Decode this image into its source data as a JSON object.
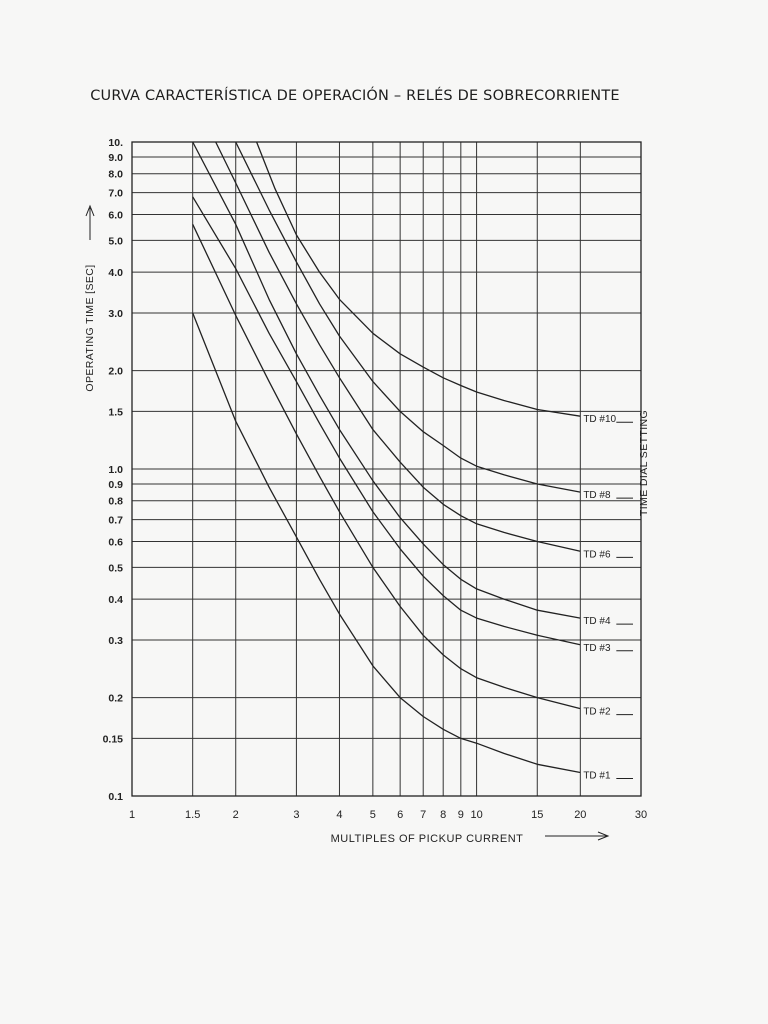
{
  "page_title": "CURVA CARACTERÍSTICA DE OPERACIÓN – RELÉS DE SOBRECORRIENTE",
  "chart_data": {
    "type": "line",
    "title": "CURVA CARACTERÍSTICA DE OPERACIÓN – RELÉS DE SOBRECORRIENTE",
    "xlabel": "MULTIPLES OF PICKUP CURRENT",
    "ylabel": "OPERATING TIME [SEC]",
    "right_label": "TIME DIAL SETTING",
    "x_scale": "log",
    "y_scale": "log",
    "xlim": [
      1,
      30
    ],
    "ylim": [
      0.1,
      10
    ],
    "grid": true,
    "x_ticks": [
      {
        "v": 1,
        "label": "1"
      },
      {
        "v": 1.5,
        "label": "1.5"
      },
      {
        "v": 2,
        "label": "2"
      },
      {
        "v": 3,
        "label": "3"
      },
      {
        "v": 4,
        "label": "4"
      },
      {
        "v": 5,
        "label": "5"
      },
      {
        "v": 6,
        "label": "6"
      },
      {
        "v": 7,
        "label": "7"
      },
      {
        "v": 8,
        "label": "8"
      },
      {
        "v": 9,
        "label": "9"
      },
      {
        "v": 10,
        "label": "10"
      },
      {
        "v": 15,
        "label": "15"
      },
      {
        "v": 20,
        "label": "20"
      },
      {
        "v": 30,
        "label": "30"
      }
    ],
    "y_ticks": [
      {
        "v": 10,
        "label": "10."
      },
      {
        "v": 9,
        "label": "9.0"
      },
      {
        "v": 8,
        "label": "8.0"
      },
      {
        "v": 7,
        "label": "7.0"
      },
      {
        "v": 6,
        "label": "6.0"
      },
      {
        "v": 5,
        "label": "5.0"
      },
      {
        "v": 4,
        "label": "4.0"
      },
      {
        "v": 3,
        "label": "3.0"
      },
      {
        "v": 2,
        "label": "2.0"
      },
      {
        "v": 1.5,
        "label": "1.5"
      },
      {
        "v": 1,
        "label": "1.0"
      },
      {
        "v": 0.9,
        "label": "0.9"
      },
      {
        "v": 0.8,
        "label": "0.8"
      },
      {
        "v": 0.7,
        "label": "0.7"
      },
      {
        "v": 0.6,
        "label": "0.6"
      },
      {
        "v": 0.5,
        "label": "0.5"
      },
      {
        "v": 0.4,
        "label": "0.4"
      },
      {
        "v": 0.3,
        "label": "0.3"
      },
      {
        "v": 0.2,
        "label": "0.2"
      },
      {
        "v": 0.15,
        "label": "0.15"
      },
      {
        "v": 0.1,
        "label": "0.1"
      }
    ],
    "series": [
      {
        "name": "TD #10",
        "x": [
          2.3,
          2.6,
          3.0,
          3.5,
          4.0,
          5.0,
          6.0,
          7.0,
          8.0,
          9.0,
          10.0,
          12.0,
          15.0,
          20.0
        ],
        "y": [
          10,
          7.2,
          5.2,
          4.0,
          3.3,
          2.6,
          2.25,
          2.05,
          1.9,
          1.8,
          1.72,
          1.62,
          1.52,
          1.45
        ]
      },
      {
        "name": "TD #8",
        "x": [
          2.0,
          2.5,
          3.0,
          3.5,
          4.0,
          5.0,
          6.0,
          7.0,
          8.0,
          9.0,
          10.0,
          12.0,
          15.0,
          20.0
        ],
        "y": [
          10,
          6.2,
          4.3,
          3.2,
          2.55,
          1.85,
          1.5,
          1.3,
          1.18,
          1.08,
          1.02,
          0.96,
          0.9,
          0.85
        ]
      },
      {
        "name": "TD #6",
        "x": [
          1.75,
          2.0,
          2.5,
          3.0,
          3.5,
          4.0,
          5.0,
          6.0,
          7.0,
          8.0,
          9.0,
          10.0,
          12.0,
          15.0,
          20.0
        ],
        "y": [
          10,
          7.5,
          4.6,
          3.2,
          2.4,
          1.9,
          1.32,
          1.05,
          0.88,
          0.78,
          0.72,
          0.68,
          0.64,
          0.6,
          0.56
        ]
      },
      {
        "name": "TD #4",
        "x": [
          1.5,
          2.0,
          2.5,
          3.0,
          3.5,
          4.0,
          5.0,
          6.0,
          7.0,
          8.0,
          9.0,
          10.0,
          12.0,
          15.0,
          20.0
        ],
        "y": [
          10,
          5.6,
          3.3,
          2.25,
          1.68,
          1.32,
          0.92,
          0.71,
          0.59,
          0.51,
          0.46,
          0.43,
          0.4,
          0.37,
          0.35
        ]
      },
      {
        "name": "TD #3",
        "x": [
          1.5,
          2.0,
          2.5,
          3.0,
          3.5,
          4.0,
          5.0,
          6.0,
          7.0,
          8.0,
          9.0,
          10.0,
          12.0,
          15.0,
          20.0
        ],
        "y": [
          6.8,
          4.1,
          2.6,
          1.85,
          1.38,
          1.08,
          0.74,
          0.57,
          0.47,
          0.41,
          0.37,
          0.35,
          0.33,
          0.31,
          0.29
        ]
      },
      {
        "name": "TD #2",
        "x": [
          1.5,
          2.0,
          2.5,
          3.0,
          3.5,
          4.0,
          5.0,
          6.0,
          7.0,
          8.0,
          9.0,
          10.0,
          12.0,
          15.0,
          20.0
        ],
        "y": [
          5.6,
          2.95,
          1.85,
          1.28,
          0.95,
          0.74,
          0.5,
          0.38,
          0.31,
          0.27,
          0.245,
          0.23,
          0.215,
          0.2,
          0.185
        ]
      },
      {
        "name": "TD #1",
        "x": [
          1.5,
          2.0,
          2.5,
          3.0,
          3.5,
          4.0,
          5.0,
          6.0,
          7.0,
          8.0,
          9.0,
          10.0,
          12.0,
          15.0,
          20.0
        ],
        "y": [
          3.0,
          1.4,
          0.88,
          0.62,
          0.46,
          0.36,
          0.25,
          0.2,
          0.175,
          0.16,
          0.15,
          0.145,
          0.135,
          0.125,
          0.118
        ]
      }
    ]
  }
}
